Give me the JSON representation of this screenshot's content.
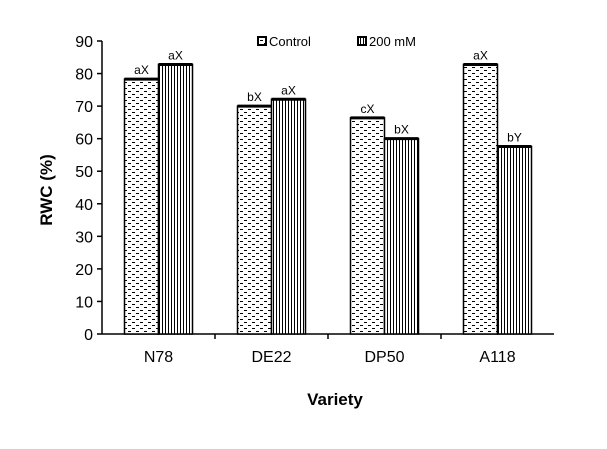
{
  "chart_data": {
    "type": "bar",
    "title": "",
    "xlabel": "Variety",
    "ylabel": "RWC (%)",
    "ylim": [
      0,
      90
    ],
    "yticks": [
      0,
      10,
      20,
      30,
      40,
      50,
      60,
      70,
      80,
      90
    ],
    "grid": false,
    "legend_position": "top",
    "categories": [
      "N78",
      "DE22",
      "DP50",
      "A118"
    ],
    "series": [
      {
        "name": "Control",
        "pattern": "dotted",
        "values": [
          78.3,
          70.0,
          66.4,
          82.8
        ],
        "labels": [
          "aX",
          "bX",
          "cX",
          "aX"
        ]
      },
      {
        "name": "200 mM",
        "pattern": "vertical-stripes",
        "values": [
          82.8,
          72.1,
          60.0,
          57.6
        ],
        "labels": [
          "aX",
          "aX",
          "bX",
          "bY"
        ]
      }
    ]
  }
}
